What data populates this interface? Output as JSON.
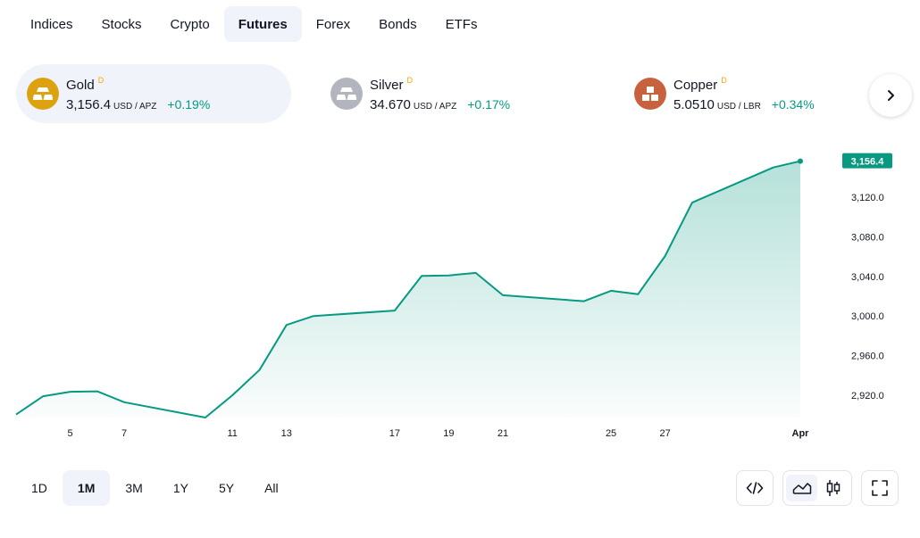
{
  "tabs": [
    {
      "label": "Indices",
      "active": false
    },
    {
      "label": "Stocks",
      "active": false
    },
    {
      "label": "Crypto",
      "active": false
    },
    {
      "label": "Futures",
      "active": true
    },
    {
      "label": "Forex",
      "active": false
    },
    {
      "label": "Bonds",
      "active": false
    },
    {
      "label": "ETFs",
      "active": false
    }
  ],
  "cards": [
    {
      "name": "Gold",
      "badge": "D",
      "price": "3,156.4",
      "unit": "USD / APZ",
      "change": "+0.19%",
      "icon": "gold-bars-icon",
      "icon_color": "#dca20f",
      "active": true
    },
    {
      "name": "Silver",
      "badge": "D",
      "price": "34.670",
      "unit": "USD / APZ",
      "change": "+0.17%",
      "icon": "silver-bars-icon",
      "icon_color": "#b2b5be",
      "active": false
    },
    {
      "name": "Copper",
      "badge": "D",
      "price": "5.0510",
      "unit": "USD / LBR",
      "change": "+0.34%",
      "icon": "copper-blocks-icon",
      "icon_color": "#c8623e",
      "active": false
    }
  ],
  "ranges": [
    {
      "label": "1D",
      "active": false
    },
    {
      "label": "1M",
      "active": true
    },
    {
      "label": "3M",
      "active": false
    },
    {
      "label": "1Y",
      "active": false
    },
    {
      "label": "5Y",
      "active": false
    },
    {
      "label": "All",
      "active": false
    }
  ],
  "colors": {
    "line": "#089981",
    "positive": "#089981",
    "badge": "#f7a600"
  },
  "chart_data": {
    "type": "area",
    "title": "",
    "xlabel": "",
    "ylabel": "",
    "ylim": [
      2895,
      3185
    ],
    "yticks": [
      "3,120.0",
      "3,080.0",
      "3,040.0",
      "3,000.0",
      "2,960.0",
      "2,920.0"
    ],
    "ytick_values": [
      3120,
      3080,
      3040,
      3000,
      2960,
      2920
    ],
    "xticks": [
      "5",
      "7",
      "11",
      "13",
      "17",
      "19",
      "21",
      "25",
      "27",
      "Apr"
    ],
    "current_value_label": "3,156.4",
    "grid": false,
    "series": [
      {
        "x": [
          "Mar 3",
          "Mar 4",
          "Mar 5",
          "Mar 6",
          "Mar 7",
          "Mar 10",
          "Mar 11",
          "Mar 12",
          "Mar 13",
          "Mar 14",
          "Mar 17",
          "Mar 18",
          "Mar 19",
          "Mar 20",
          "Mar 21",
          "Mar 24",
          "Mar 25",
          "Mar 26",
          "Mar 27",
          "Mar 28",
          "Mar 31",
          "Apr 1"
        ],
        "values": [
          2900.5,
          2919.0,
          2923.5,
          2924.0,
          2913.0,
          2897.5,
          2920.0,
          2945.5,
          2991.0,
          3000.0,
          3005.5,
          3040.5,
          3041.0,
          3043.5,
          3021.0,
          3015.0,
          3025.5,
          3022.0,
          3060.5,
          3114.5,
          3150.0,
          3156.4
        ]
      }
    ]
  }
}
